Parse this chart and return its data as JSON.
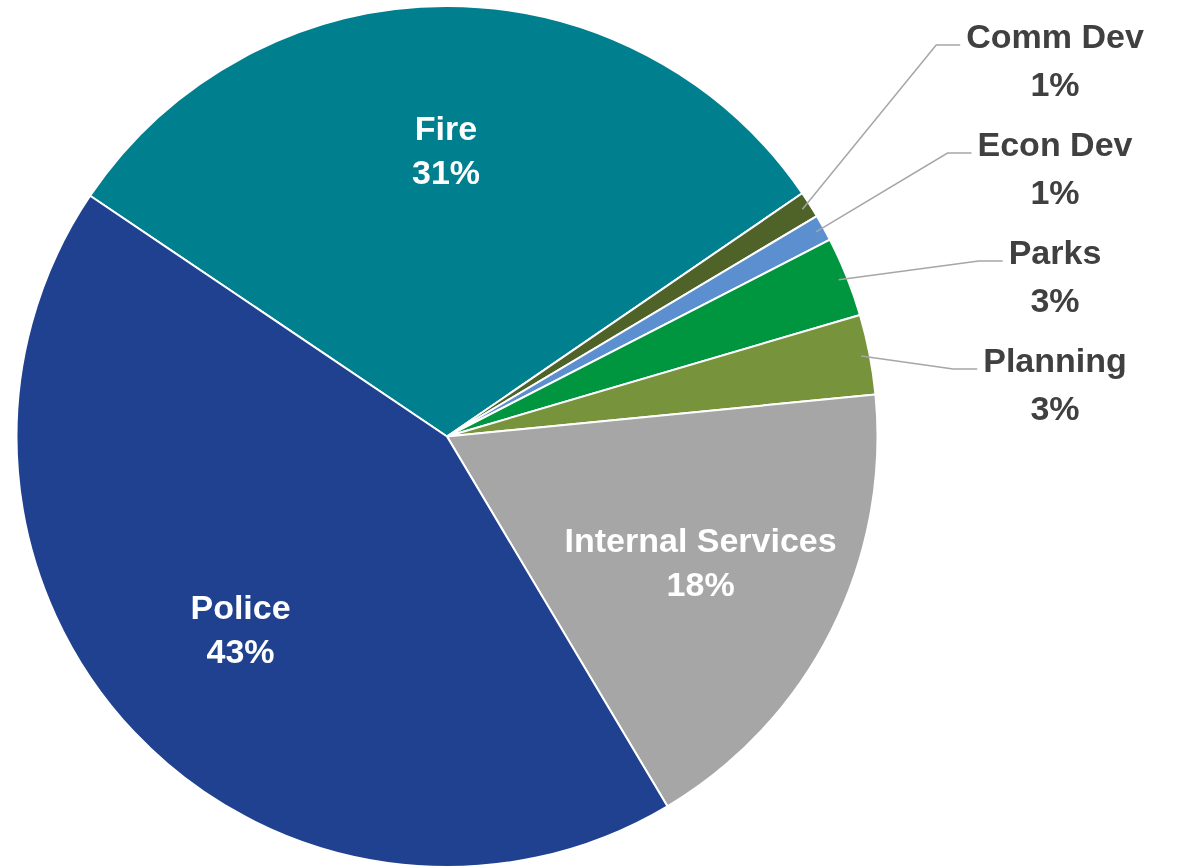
{
  "chart_data": {
    "type": "pie",
    "categories": [
      "Fire",
      "Comm Dev",
      "Econ Dev",
      "Parks",
      "Planning",
      "Internal Services",
      "Police"
    ],
    "values": [
      31,
      1,
      1,
      3,
      3,
      18,
      43
    ],
    "colors": [
      "#00808f",
      "#4f6228",
      "#5b8fd0",
      "#00953f",
      "#77933c",
      "#a6a6a6",
      "#1f418f"
    ],
    "value_labels": [
      "31%",
      "1%",
      "1%",
      "3%",
      "3%",
      "18%",
      "43%"
    ],
    "legend": false
  }
}
